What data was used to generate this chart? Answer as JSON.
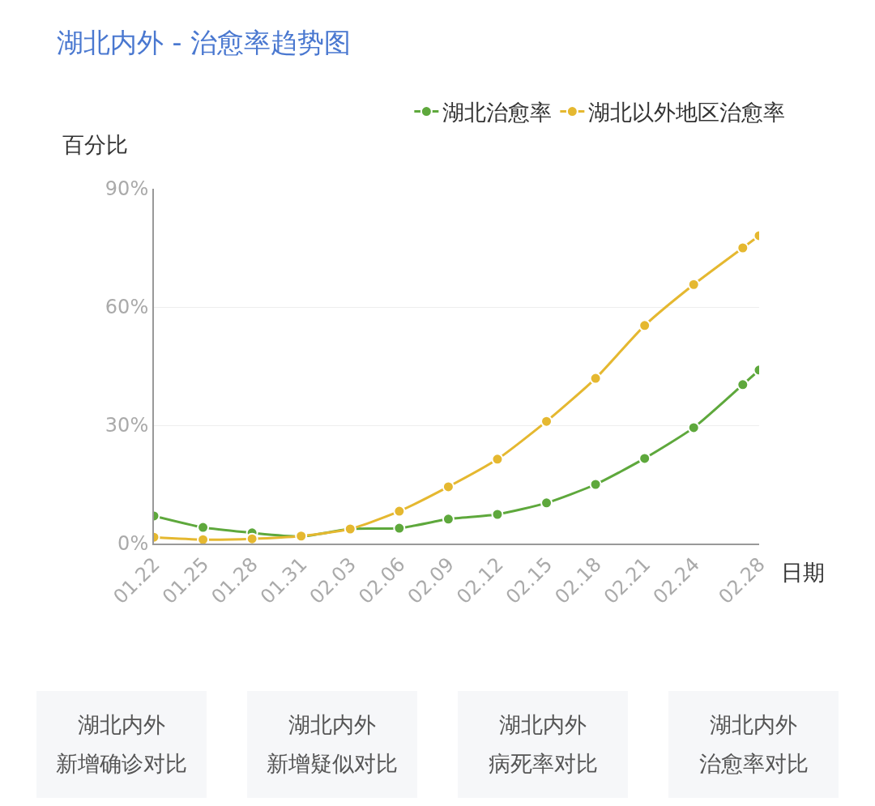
{
  "chart_data": {
    "type": "line",
    "title": "湖北内外 - 治愈率趋势图",
    "ylabel": "百分比",
    "xlabel": "日期",
    "x": [
      "--01-22",
      "--01-25",
      "--01-28",
      "--01-31",
      "--02-03",
      "--02-06",
      "--02-09",
      "--02-12",
      "--02-15",
      "--02-18",
      "--02-21",
      "--02-24",
      "--02-27",
      "--02-28"
    ],
    "series": [
      {
        "name": "湖北治愈率",
        "color": "#5ea83c",
        "values": [
          7.0,
          4.1,
          2.7,
          1.8,
          3.7,
          3.9,
          6.2,
          7.4,
          10.3,
          15.0,
          21.6,
          29.4,
          40.3,
          44.0
        ]
      },
      {
        "name": "湖北以外地区治愈率",
        "color": "#e5b830",
        "values": [
          1.6,
          1.0,
          1.2,
          1.9,
          3.7,
          8.2,
          14.4,
          21.4,
          31.0,
          41.9,
          55.3,
          65.7,
          75.0,
          78.1
        ]
      }
    ],
    "xlim": [
      "--01-22",
      "--02-28"
    ],
    "xticks": [
      {
        "value": "--01-22",
        "label": "01.22"
      },
      {
        "value": "--01-25",
        "label": "01.25"
      },
      {
        "value": "--01-28",
        "label": "01.28"
      },
      {
        "value": "--01-31",
        "label": "01.31"
      },
      {
        "value": "--02-03",
        "label": "02.03"
      },
      {
        "value": "--02-06",
        "label": "02.06"
      },
      {
        "value": "--02-09",
        "label": "02.09"
      },
      {
        "value": "--02-12",
        "label": "02.12"
      },
      {
        "value": "--02-15",
        "label": "02.15"
      },
      {
        "value": "--02-18",
        "label": "02.18"
      },
      {
        "value": "--02-21",
        "label": "02.21"
      },
      {
        "value": "--02-24",
        "label": "02.24"
      },
      {
        "value": "--02-28",
        "label": "02.28"
      }
    ],
    "ylim": [
      0,
      90
    ],
    "yticks": [
      {
        "value": 0,
        "label": "0%"
      },
      {
        "value": 30,
        "label": "30%"
      },
      {
        "value": 60,
        "label": "60%"
      },
      {
        "value": 90,
        "label": "90%"
      }
    ],
    "grid": "y",
    "legend": "top right",
    "marker": "circle",
    "line_style": "solid",
    "annotations": [
      "湖北内外",
      "新增确诊对比",
      "湖北内外",
      "新增疑似对比",
      "湖北内外",
      "病死率对比",
      "湖北内外",
      "治愈率对比"
    ]
  }
}
